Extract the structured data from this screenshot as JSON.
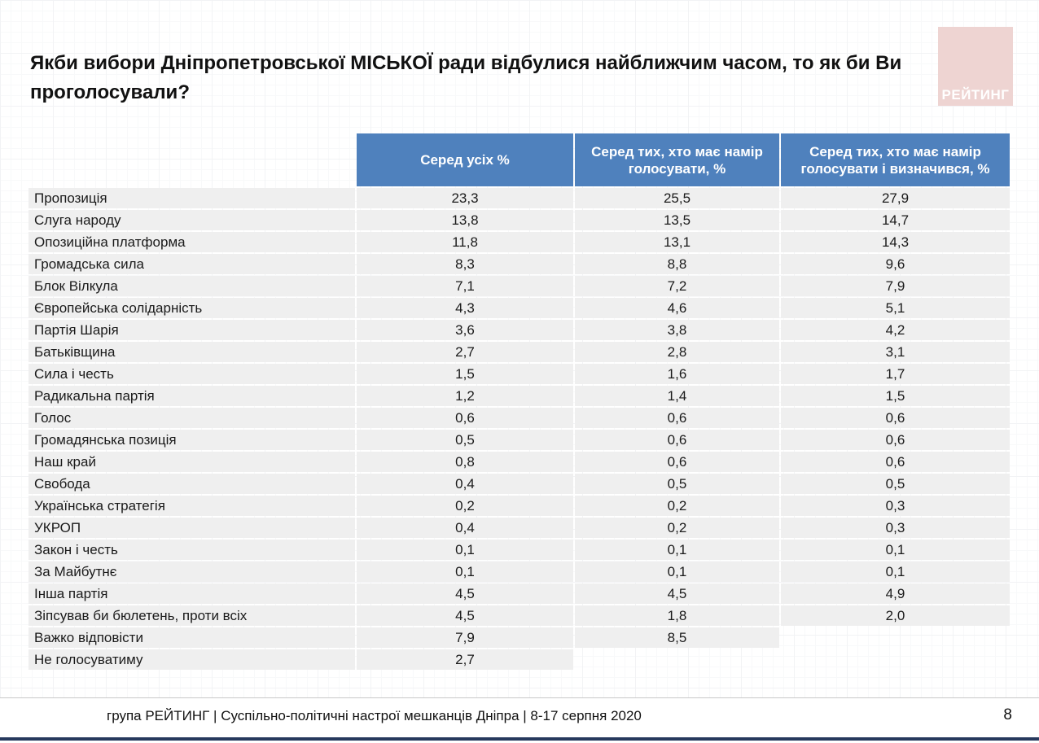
{
  "slide": {
    "title": "Якби вибори Дніпропетровської МІСЬКОЇ ради відбулися найближчим часом, то як би Ви проголосували?",
    "logo_text": "РЕЙТИНГ",
    "footer_text": "група РЕЙТИНГ  | Суспільно-політичні настрої мешканців Дніпра | 8-17 серпня 2020",
    "page_number": "8"
  },
  "colors": {
    "header_blue": "#4f81bd",
    "row_gray": "#efefef",
    "logo_pink": "#eed4d2",
    "bottom_bar_navy": "#27395d"
  },
  "chart_data": {
    "type": "table",
    "title": "Якби вибори Дніпропетровської МІСЬКОЇ ради відбулися найближчим часом, то як би Ви проголосували?",
    "value_format": "percent, comma decimal separator",
    "columns": [
      "",
      "Серед усіх %",
      "Серед тих, хто має намір голосувати, %",
      "Серед тих, хто має намір голосувати і визначився, %"
    ],
    "rows": [
      {
        "label": "Пропозиція",
        "values": [
          "23,3",
          "25,5",
          "27,9"
        ]
      },
      {
        "label": "Слуга народу",
        "values": [
          "13,8",
          "13,5",
          "14,7"
        ]
      },
      {
        "label": "Опозиційна платформа",
        "values": [
          "11,8",
          "13,1",
          "14,3"
        ]
      },
      {
        "label": "Громадська сила",
        "values": [
          "8,3",
          "8,8",
          "9,6"
        ]
      },
      {
        "label": "Блок Вілкула",
        "values": [
          "7,1",
          "7,2",
          "7,9"
        ]
      },
      {
        "label": "Європейська солідарність",
        "values": [
          "4,3",
          "4,6",
          "5,1"
        ]
      },
      {
        "label": "Партія Шарія",
        "values": [
          "3,6",
          "3,8",
          "4,2"
        ]
      },
      {
        "label": "Батьківщина",
        "values": [
          "2,7",
          "2,8",
          "3,1"
        ]
      },
      {
        "label": "Сила і честь",
        "values": [
          "1,5",
          "1,6",
          "1,7"
        ]
      },
      {
        "label": "Радикальна партія",
        "values": [
          "1,2",
          "1,4",
          "1,5"
        ]
      },
      {
        "label": "Голос",
        "values": [
          "0,6",
          "0,6",
          "0,6"
        ]
      },
      {
        "label": "Громадянська позиція",
        "values": [
          "0,5",
          "0,6",
          "0,6"
        ]
      },
      {
        "label": "Наш край",
        "values": [
          "0,8",
          "0,6",
          "0,6"
        ]
      },
      {
        "label": "Свобода",
        "values": [
          "0,4",
          "0,5",
          "0,5"
        ]
      },
      {
        "label": "Українська стратегія",
        "values": [
          "0,2",
          "0,2",
          "0,3"
        ]
      },
      {
        "label": "УКРОП",
        "values": [
          "0,4",
          "0,2",
          "0,3"
        ]
      },
      {
        "label": "Закон і честь",
        "values": [
          "0,1",
          "0,1",
          "0,1"
        ]
      },
      {
        "label": "За Майбутнє",
        "values": [
          "0,1",
          "0,1",
          "0,1"
        ]
      },
      {
        "label": "Інша партія",
        "values": [
          "4,5",
          "4,5",
          "4,9"
        ]
      },
      {
        "label": "Зіпсував би бюлетень, проти всіх",
        "values": [
          "4,5",
          "1,8",
          "2,0"
        ]
      },
      {
        "label": "Важко відповісти",
        "values": [
          "7,9",
          "8,5",
          null
        ]
      },
      {
        "label": "Не голосуватиму",
        "values": [
          "2,7",
          null,
          null
        ]
      }
    ]
  }
}
